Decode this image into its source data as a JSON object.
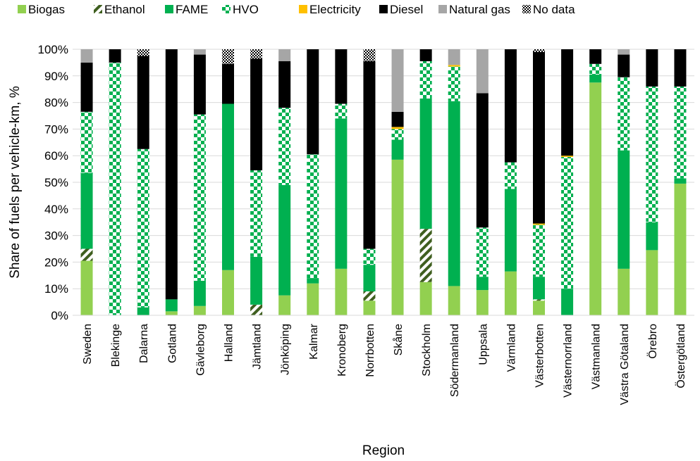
{
  "chart_data": {
    "type": "bar",
    "stacked": true,
    "xlabel": "Region",
    "ylabel": "Share of fuels per vehicle-km, %",
    "ylim": [
      0,
      100
    ],
    "yticks": [
      "0%",
      "10%",
      "20%",
      "30%",
      "40%",
      "50%",
      "60%",
      "70%",
      "80%",
      "90%",
      "100%"
    ],
    "grid": "horizontal",
    "legend_position": "top",
    "categories": [
      "Sweden",
      "Blekinge",
      "Dalarna",
      "Gotland",
      "Gävleborg",
      "Halland",
      "Jämtland",
      "Jönköping",
      "Kalmar",
      "Kronoberg",
      "Norrbotten",
      "Skåne",
      "Stockholm",
      "Södermanland",
      "Uppsala",
      "Värmland",
      "Västerbotten",
      "Västernorrland",
      "Västmanland",
      "Västra Götaland",
      "Örebro",
      "Östergötland"
    ],
    "series": [
      {
        "name": "Biogas",
        "color": "#92d050",
        "pattern": "solid",
        "values": [
          20.5,
          0,
          0,
          1.5,
          3.5,
          17,
          0,
          7.5,
          12,
          17.5,
          5.5,
          58.5,
          12.5,
          11,
          9.5,
          16.5,
          5.5,
          0,
          87.5,
          17.5,
          24.5,
          49.5
        ]
      },
      {
        "name": "Ethanol",
        "color": "#3f5f1f",
        "pattern": "diagonal",
        "values": [
          4.5,
          0,
          0,
          0,
          0,
          0,
          4,
          0,
          0,
          0,
          3.5,
          0,
          20,
          0,
          0,
          0,
          0.5,
          0,
          0,
          0,
          0,
          0
        ]
      },
      {
        "name": "FAME",
        "color": "#00b050",
        "pattern": "solid",
        "values": [
          28.5,
          0,
          3,
          4.5,
          9.5,
          62.5,
          18,
          41.5,
          2,
          56.5,
          10,
          7.5,
          49,
          69.5,
          5,
          31,
          8.5,
          10,
          3,
          44.5,
          10.5,
          2
        ]
      },
      {
        "name": "HVO",
        "color": "#00b050",
        "pattern": "checker",
        "values": [
          23,
          95,
          59.5,
          0,
          62.5,
          0,
          32.5,
          29,
          46.5,
          5.5,
          6,
          4,
          14,
          13,
          18.5,
          10,
          19.5,
          49.5,
          4,
          27.5,
          51,
          34.5
        ]
      },
      {
        "name": "Electricity",
        "color": "#ffc000",
        "pattern": "solid",
        "values": [
          0,
          0,
          0,
          0,
          0,
          0,
          0,
          0,
          0,
          0,
          0,
          0.8,
          0,
          0.6,
          0,
          0,
          0.5,
          0.5,
          0,
          0,
          0,
          0
        ]
      },
      {
        "name": "Diesel",
        "color": "#000000",
        "pattern": "solid",
        "values": [
          18.5,
          5,
          35,
          94,
          22.5,
          15,
          42,
          17.5,
          39.5,
          20.5,
          70.5,
          5.7,
          4.5,
          0,
          50.5,
          42.5,
          64.5,
          40,
          5.5,
          8.5,
          14,
          14
        ]
      },
      {
        "name": "Natural gas",
        "color": "#a6a6a6",
        "pattern": "solid",
        "values": [
          5,
          0,
          0,
          0,
          2,
          0,
          0,
          4.5,
          0,
          0,
          0,
          23.5,
          0,
          5.9,
          16.5,
          0,
          0,
          0,
          0,
          2,
          0,
          0
        ]
      },
      {
        "name": "No data",
        "color": "#808080",
        "pattern": "dots",
        "values": [
          0,
          0,
          2.5,
          0,
          0,
          5.5,
          3.5,
          0,
          0,
          0,
          4.5,
          0,
          0,
          0,
          0,
          0,
          1,
          0,
          0,
          0,
          0,
          0
        ]
      }
    ]
  }
}
